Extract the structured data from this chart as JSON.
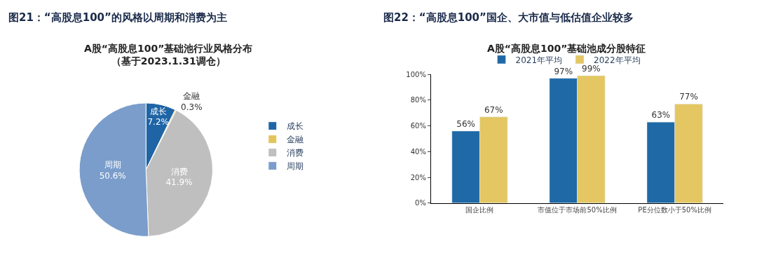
{
  "chart_data": [
    {
      "type": "pie",
      "title": "图21：“高股息100”的风格以周期和消费为主",
      "subtitle": "A股“高股息100”基础池行业风格分布（基于2023.1.31调仓）",
      "categories": [
        "成长",
        "金融",
        "消费",
        "周期"
      ],
      "values": [
        7.2,
        0.3,
        41.9,
        50.6
      ],
      "value_labels": [
        "7.2%",
        "0.3%",
        "41.9%",
        "50.6%"
      ],
      "colors": [
        "#1f65a6",
        "#e3c45c",
        "#bfbfbf",
        "#7a9dcb"
      ],
      "legend": "right"
    },
    {
      "type": "bar",
      "title": "图22：“高股息100”国企、大市值与低估值企业较多",
      "subtitle": "A股“高股息100”基础池成分股特征",
      "categories": [
        "国企比例",
        "市值位于市场前50%比例",
        "PE分位数小于50%比例"
      ],
      "series": [
        {
          "name": "2021年平均",
          "color": "#1f69a6",
          "values": [
            56,
            97,
            63
          ],
          "value_labels": [
            "56%",
            "97%",
            "63%"
          ]
        },
        {
          "name": "2022年平均",
          "color": "#e4c763",
          "values": [
            67,
            99,
            77
          ],
          "value_labels": [
            "67%",
            "99%",
            "77%"
          ]
        }
      ],
      "ylim": [
        0,
        100
      ],
      "yticks": [
        {
          "value": 0,
          "label": "0%"
        },
        {
          "value": 20,
          "label": "20%"
        },
        {
          "value": 40,
          "label": "40%"
        },
        {
          "value": 60,
          "label": "60%"
        },
        {
          "value": 80,
          "label": "80%"
        },
        {
          "value": 100,
          "label": "100%"
        }
      ],
      "legend": "top"
    }
  ]
}
